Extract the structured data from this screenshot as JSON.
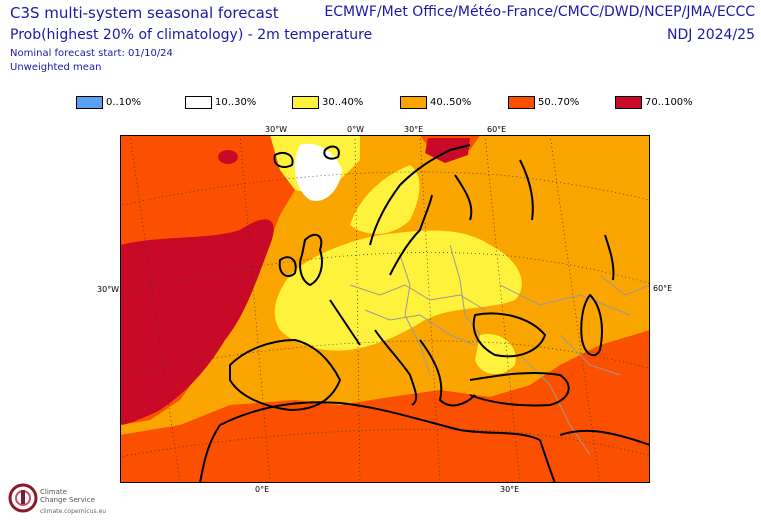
{
  "header": {
    "title": "C3S multi-system seasonal forecast",
    "subtitle": "Prob(highest 20% of climatology) - 2m temperature",
    "start": "Nominal forecast start: 01/10/24",
    "mean": "Unweighted mean",
    "systems": "ECMWF/Met Office/Météo-France/CMCC/DWD/NCEP/JMA/ECCC",
    "season": "NDJ 2024/25"
  },
  "legend": [
    {
      "label": "0..10%",
      "color": "#5aa0f0"
    },
    {
      "label": "10..30%",
      "color": "#ffffff"
    },
    {
      "label": "30..40%",
      "color": "#fff23c"
    },
    {
      "label": "40..50%",
      "color": "#fba500"
    },
    {
      "label": "50..70%",
      "color": "#fa5000"
    },
    {
      "label": "70..100%",
      "color": "#c80a28"
    }
  ],
  "map": {
    "top_labels": [
      "30°W",
      "0°W",
      "30°E",
      "60°E"
    ],
    "bottom_labels": [
      "0°E",
      "30°E"
    ],
    "left_label": "30°W",
    "right_label": "60°E"
  },
  "logo": {
    "name_line1": "Climate",
    "name_line2": "Change Service",
    "url": "climate.copernicus.eu"
  }
}
